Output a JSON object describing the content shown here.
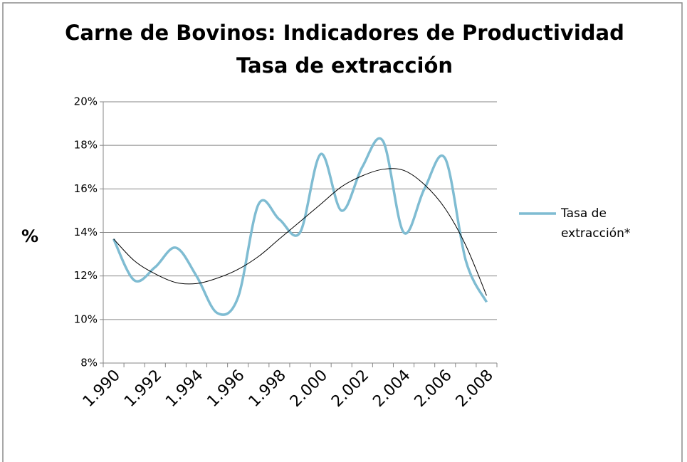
{
  "chart_data": {
    "type": "line",
    "title": [
      "Carne de Bovinos: Indicadores de Productividad",
      "Tasa de extracción"
    ],
    "y_label": "%",
    "categories": [
      "1.990",
      null,
      "1.992",
      null,
      "1.994",
      null,
      "1.996",
      null,
      "1.998",
      null,
      "2.000",
      null,
      "2.002",
      null,
      "2.004",
      null,
      "2.006",
      null,
      "2.008"
    ],
    "series": [
      {
        "name": "Tasa de extracción*",
        "color": "#7fbcd2",
        "values": [
          13.7,
          11.8,
          12.4,
          13.3,
          12.0,
          10.3,
          11.0,
          15.3,
          14.6,
          14.0,
          17.6,
          15.0,
          17.0,
          18.2,
          14.0,
          16.0,
          17.4,
          12.7,
          10.8
        ]
      }
    ],
    "trendline": {
      "color": "#000000",
      "values": [
        13.7,
        12.7,
        12.1,
        11.7,
        11.65,
        11.9,
        12.3,
        12.9,
        13.7,
        14.5,
        15.3,
        16.1,
        16.6,
        16.9,
        16.85,
        16.2,
        15.1,
        13.4,
        11.1
      ]
    },
    "ylim": [
      8,
      20
    ],
    "yticks": [
      {
        "value": 8,
        "label": "8%"
      },
      {
        "value": 10,
        "label": "10%"
      },
      {
        "value": 12,
        "label": "12%"
      },
      {
        "value": 14,
        "label": "14%"
      },
      {
        "value": 16,
        "label": "16%"
      },
      {
        "value": 18,
        "label": "18%"
      },
      {
        "value": 20,
        "label": "20%"
      }
    ],
    "grid": true,
    "legend": "right"
  }
}
